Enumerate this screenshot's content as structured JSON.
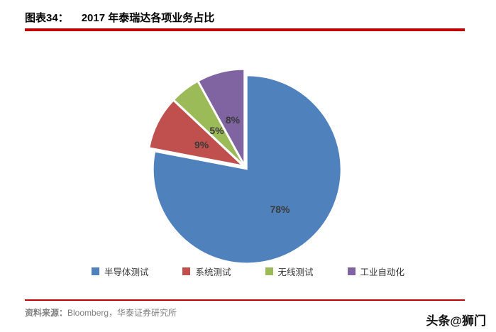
{
  "header": {
    "label": "图表34：",
    "title": "2017 年泰瑞达各项业务占比"
  },
  "chart_data": {
    "type": "pie",
    "title": "2017 年泰瑞达各项业务占比",
    "categories": [
      "半导体测试",
      "系统测试",
      "无线测试",
      "工业自动化"
    ],
    "values": [
      78,
      9,
      5,
      8
    ],
    "unit": "%",
    "data_labels": [
      "78%",
      "9%",
      "5%",
      "8%"
    ],
    "colors": [
      "#4F81BD",
      "#C0504D",
      "#9BBB59",
      "#8064A2"
    ],
    "legend_position": "bottom",
    "start_angle_deg": 0,
    "direction": "clockwise",
    "exploded": true
  },
  "footer": {
    "source_label": "资料来源：",
    "source_text": "Bloomberg，华泰证券研究所"
  },
  "watermark": "头条@狮门",
  "accent_color": "#C00000"
}
